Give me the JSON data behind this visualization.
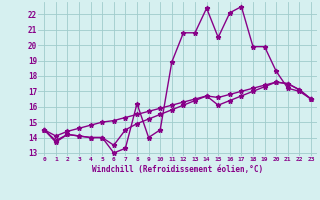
{
  "xlabel": "Windchill (Refroidissement éolien,°C)",
  "xlim": [
    -0.5,
    23.5
  ],
  "ylim": [
    12.8,
    22.8
  ],
  "yticks": [
    13,
    14,
    15,
    16,
    17,
    18,
    19,
    20,
    21,
    22
  ],
  "xticks": [
    0,
    1,
    2,
    3,
    4,
    5,
    6,
    7,
    8,
    9,
    10,
    11,
    12,
    13,
    14,
    15,
    16,
    17,
    18,
    19,
    20,
    21,
    22,
    23
  ],
  "bg_color": "#d6f0f0",
  "grid_color": "#a0cccc",
  "line_color": "#880088",
  "line_width": 1.0,
  "marker": "*",
  "marker_size": 3.5,
  "series": [
    [
      14.5,
      13.7,
      14.2,
      14.1,
      14.0,
      14.0,
      13.0,
      13.3,
      16.2,
      14.0,
      14.5,
      18.9,
      20.8,
      20.8,
      22.4,
      20.5,
      22.1,
      22.5,
      19.9,
      19.9,
      18.3,
      17.2,
      17.0,
      16.5
    ],
    [
      14.5,
      13.8,
      14.2,
      14.1,
      14.0,
      14.0,
      13.5,
      14.5,
      14.9,
      15.2,
      15.5,
      15.8,
      16.1,
      16.4,
      16.7,
      16.1,
      16.4,
      16.7,
      17.0,
      17.3,
      17.6,
      17.5,
      17.1,
      16.5
    ],
    [
      14.5,
      14.1,
      14.4,
      14.6,
      14.8,
      15.0,
      15.1,
      15.3,
      15.5,
      15.7,
      15.9,
      16.1,
      16.3,
      16.5,
      16.7,
      16.6,
      16.8,
      17.0,
      17.2,
      17.4,
      17.6,
      17.5,
      17.1,
      16.5
    ]
  ]
}
